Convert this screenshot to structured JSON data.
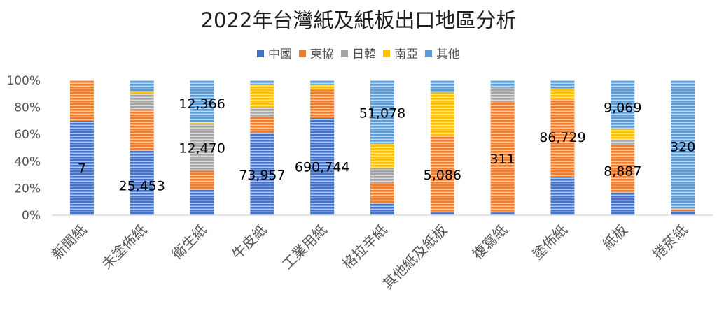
{
  "chart_data": {
    "type": "bar",
    "stacked": "percent",
    "title": "2022年台灣紙及紙板出口地區分析",
    "categories": [
      "新聞紙",
      "未塗佈紙",
      "衛生紙",
      "牛皮紙",
      "工業用紙",
      "格拉辛紙",
      "其他紙及紙板",
      "複寫紙",
      "塗佈紙",
      "紙板",
      "捲菸紙"
    ],
    "ylim": [
      0,
      100
    ],
    "yticks": [
      "0%",
      "20%",
      "40%",
      "60%",
      "80%",
      "100%"
    ],
    "legend_position": "top",
    "series": [
      {
        "name": "中國",
        "color": "#4472c4",
        "values": [
          70,
          48,
          19,
          61,
          72,
          9,
          2,
          2,
          28,
          17,
          3
        ]
      },
      {
        "name": "東協",
        "color": "#ed7d31",
        "values": [
          30,
          30,
          14,
          12,
          21,
          15,
          57,
          82,
          58,
          35,
          2
        ]
      },
      {
        "name": "日韓",
        "color": "#a5a5a5",
        "values": [
          0,
          12,
          35,
          7,
          0,
          11,
          0,
          11,
          0,
          4,
          0
        ]
      },
      {
        "name": "南亞",
        "color": "#ffc000",
        "values": [
          0,
          2,
          1,
          17,
          4,
          18,
          32,
          0,
          8,
          8,
          0
        ]
      },
      {
        "name": "其他",
        "color": "#5b9bd5",
        "values": [
          0,
          8,
          31,
          3,
          3,
          47,
          9,
          5,
          6,
          36,
          95
        ]
      }
    ],
    "data_labels": [
      {
        "category_index": 0,
        "text": "7",
        "y": 35
      },
      {
        "category_index": 1,
        "text": "25,453",
        "y": 22
      },
      {
        "category_index": 2,
        "text": "12,366",
        "y": 83
      },
      {
        "category_index": 2,
        "text": "12,470",
        "y": 50
      },
      {
        "category_index": 3,
        "text": "73,957",
        "y": 30
      },
      {
        "category_index": 4,
        "text": "690,744",
        "y": 36
      },
      {
        "category_index": 5,
        "text": "51,078",
        "y": 76
      },
      {
        "category_index": 6,
        "text": "5,086",
        "y": 30
      },
      {
        "category_index": 7,
        "text": "311",
        "y": 42
      },
      {
        "category_index": 8,
        "text": "86,729",
        "y": 58
      },
      {
        "category_index": 9,
        "text": "9,069",
        "y": 80
      },
      {
        "category_index": 9,
        "text": "8,887",
        "y": 33
      },
      {
        "category_index": 10,
        "text": "320",
        "y": 51
      }
    ]
  }
}
